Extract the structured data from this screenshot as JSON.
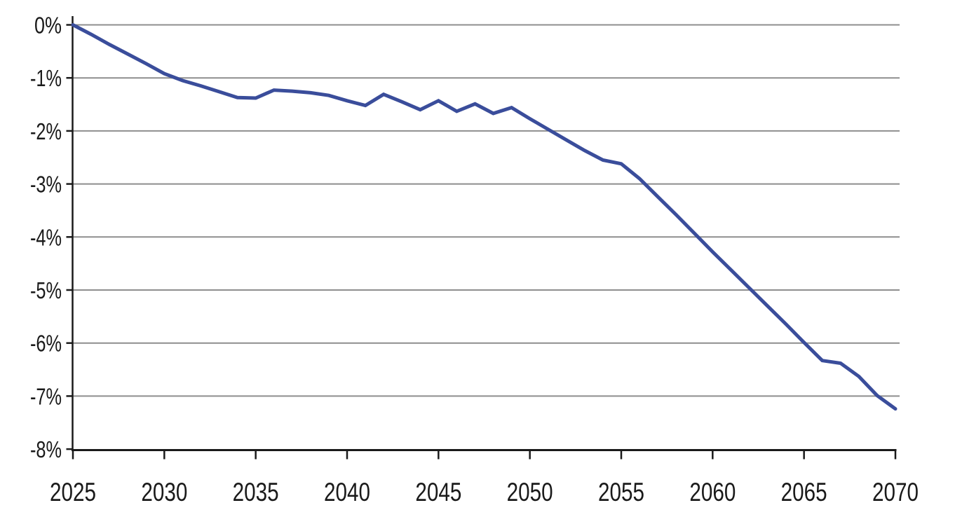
{
  "chart_data": {
    "type": "line",
    "title": "",
    "xlabel": "",
    "ylabel": "",
    "x": [
      2025,
      2026,
      2027,
      2028,
      2029,
      2030,
      2031,
      2032,
      2033,
      2034,
      2035,
      2036,
      2037,
      2038,
      2039,
      2040,
      2041,
      2042,
      2043,
      2044,
      2045,
      2046,
      2047,
      2048,
      2049,
      2050,
      2051,
      2052,
      2053,
      2054,
      2055,
      2056,
      2057,
      2058,
      2059,
      2060,
      2061,
      2062,
      2063,
      2064,
      2065,
      2066,
      2067,
      2068,
      2069,
      2070
    ],
    "values": [
      0.0,
      -0.18,
      -0.37,
      -0.55,
      -0.73,
      -0.92,
      -1.05,
      -1.15,
      -1.26,
      -1.37,
      -1.38,
      -1.23,
      -1.25,
      -1.28,
      -1.33,
      -1.43,
      -1.52,
      -1.31,
      -1.45,
      -1.6,
      -1.43,
      -1.63,
      -1.49,
      -1.67,
      -1.56,
      -1.77,
      -1.97,
      -2.17,
      -2.37,
      -2.55,
      -2.62,
      -2.9,
      -3.24,
      -3.58,
      -3.93,
      -4.28,
      -4.62,
      -4.96,
      -5.3,
      -5.64,
      -5.99,
      -6.33,
      -6.38,
      -6.63,
      -6.99,
      -7.24
    ],
    "units": "%",
    "xlim": [
      2025,
      2070
    ],
    "ylim": [
      -8,
      0
    ],
    "y_tick_labels": [
      "0%",
      "-1%",
      "-2%",
      "-3%",
      "-4%",
      "-5%",
      "-6%",
      "-7%",
      "-8%"
    ],
    "x_tick_labels": [
      "2025",
      "2030",
      "2035",
      "2040",
      "2045",
      "2050",
      "2055",
      "2060",
      "2065",
      "2070"
    ],
    "grid": true,
    "legend": false,
    "colors": {
      "line": "#3a4d9b",
      "gridline": "#8e8e8e",
      "axis": "#1a1a1a",
      "label": "#1a1a1a",
      "background": "#ffffff"
    }
  }
}
